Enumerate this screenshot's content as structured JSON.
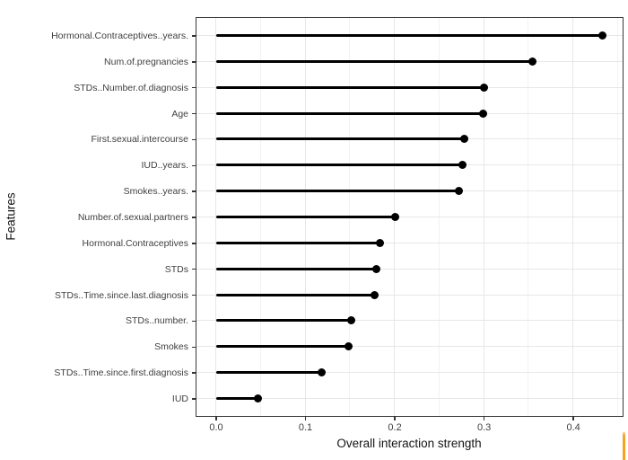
{
  "chart_data": {
    "type": "lollipop",
    "orientation": "horizontal",
    "title": "",
    "xlabel": "Overall interaction strength",
    "ylabel": "Features",
    "categories": [
      "Hormonal.Contraceptives..years.",
      "Num.of.pregnancies",
      "STDs..Number.of.diagnosis",
      "Age",
      "First.sexual.intercourse",
      "IUD..years.",
      "Smokes..years.",
      "Number.of.sexual.partners",
      "Hormonal.Contraceptives",
      "STDs",
      "STDs..Time.since.last.diagnosis",
      "STDs..number.",
      "Smokes",
      "STDs..Time.since.first.diagnosis",
      "IUD"
    ],
    "values": [
      0.433,
      0.355,
      0.3,
      0.299,
      0.278,
      0.276,
      0.272,
      0.201,
      0.184,
      0.18,
      0.178,
      0.152,
      0.149,
      0.119,
      0.047
    ],
    "xlim": [
      -0.0216,
      0.4536
    ],
    "x_major_ticks": [
      0.0,
      0.1,
      0.2,
      0.3,
      0.4
    ],
    "x_tick_labels": [
      "0.0",
      "0.1",
      "0.2",
      "0.3",
      "0.4"
    ],
    "x_minor_gridlines": [
      0.05,
      0.15,
      0.25,
      0.35,
      0.45
    ],
    "grid": true,
    "legend": false,
    "colors": {
      "stem": "#000000",
      "dot": "#000000",
      "grid_major": "#e7e7e7",
      "grid_minor": "#f2f2f2",
      "panel_border": "#3a3a3a",
      "tick_text": "#3f3f3f",
      "title_text": "#141414",
      "accent_bar": "#f6a41c"
    }
  }
}
